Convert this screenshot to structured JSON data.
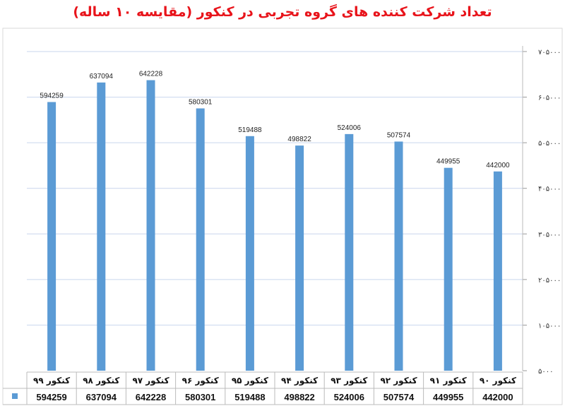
{
  "chart_data": {
    "type": "bar",
    "title": "تعداد شرکت کننده های گروه تجربی در کنکور (مقایسه ۱۰ ساله)",
    "categories": [
      "کنکور ۹۹",
      "کنکور ۹۸",
      "کنکور ۹۷",
      "کنکور ۹۶",
      "کنکور ۹۵",
      "کنکور ۹۴",
      "کنکور ۹۳",
      "کنکور ۹۲",
      "کنکور ۹۱",
      "کنکور ۹۰"
    ],
    "values": [
      594259,
      637094,
      642228,
      580301,
      519488,
      498822,
      524006,
      507574,
      449955,
      442000
    ],
    "ylim": [
      5000,
      705000
    ],
    "yticks": [
      5000,
      105000,
      205000,
      305000,
      405000,
      505000,
      605000,
      705000
    ],
    "ytick_labels": [
      "۵۰۰۰",
      "۱۰۵۰۰۰",
      "۲۰۵۰۰۰",
      "۳۰۵۰۰۰",
      "۴۰۵۰۰۰",
      "۵۰۵۰۰۰",
      "۶۰۵۰۰۰",
      "۷۰۵۰۰۰"
    ],
    "yaxis_side": "right",
    "grid": true,
    "data_table": true,
    "bar_color": "#5b9bd5",
    "title_color": "#e8141b"
  }
}
